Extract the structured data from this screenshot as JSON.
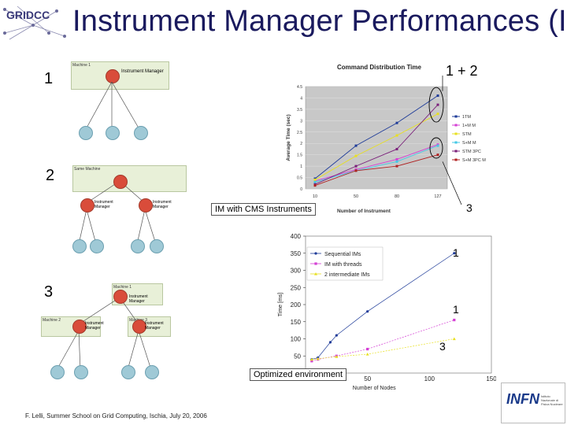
{
  "title": "Instrument Manager Performances (II)",
  "logo_text": "GRIDCC",
  "footer": "F. Lelli, Summer School on Grid Computing, Ischia, July 20, 2006",
  "infn_logo": "INFN",
  "infn_sub": "Istituto Nazionale di Fisica Nucleare",
  "labels": {
    "n1_top": "1",
    "n2": "2",
    "n3_left": "3",
    "chart1_note": "1 + 2",
    "chart1_note3": "3",
    "chart2_note1a": "1",
    "chart2_note1b": "1",
    "chart2_note3": "3"
  },
  "captions": {
    "cms": "IM with CMS Instruments",
    "optimized": "Optimized environment"
  },
  "diagrams": {
    "d1_machine": "Machine 1",
    "d1_im": "Instrument Manager",
    "d2_same": "Same Machine",
    "d2_im1": "Instrument Manager",
    "d2_im2": "Instrument Manager",
    "d3_machine1": "Machine 1",
    "d3_machine2": "Machine 2",
    "d3_machine3": "Machine 3",
    "d3_im1": "Instrument Manager",
    "d3_im2": "Instrument Manager",
    "d3_im3": "Instrument Manager"
  },
  "chart_data": [
    {
      "type": "line",
      "title": "Command Distribution Time",
      "xlabel": "Number of Instrument",
      "ylabel": "Average Time (sec)",
      "categories": [
        "10",
        "50",
        "80",
        "127"
      ],
      "ylim": [
        0,
        4.5
      ],
      "yticks": [
        "0",
        "0.5",
        "1",
        "1.5",
        "2",
        "2.5",
        "3",
        "3.5",
        "4",
        "4.5"
      ],
      "legend_position": "right",
      "series": [
        {
          "name": "1TM",
          "color": "#1f3c99",
          "values": [
            0.45,
            1.9,
            2.9,
            4.1
          ]
        },
        {
          "name": "1+M M",
          "color": "#d43fd4",
          "values": [
            0.35,
            0.85,
            1.3,
            1.95
          ]
        },
        {
          "name": "STM",
          "color": "#e8e020",
          "values": [
            0.4,
            1.45,
            2.35,
            3.3
          ]
        },
        {
          "name": "S+M M",
          "color": "#44c8e6",
          "values": [
            0.3,
            0.8,
            1.2,
            1.9
          ]
        },
        {
          "name": "STM 3PC",
          "color": "#7a1f7a",
          "values": [
            0.2,
            1.0,
            1.75,
            3.7
          ]
        },
        {
          "name": "S+M 3PC M",
          "color": "#b02020",
          "values": [
            0.15,
            0.8,
            1.0,
            1.5
          ]
        }
      ]
    },
    {
      "type": "line",
      "title": "",
      "xlabel": "Number of Nodes",
      "ylabel": "Time [ms]",
      "xlim": [
        0,
        150
      ],
      "ylim": [
        0,
        400
      ],
      "xticks": [
        "0",
        "50",
        "100",
        "150"
      ],
      "yticks": [
        "0",
        "50",
        "100",
        "150",
        "200",
        "250",
        "300",
        "350",
        "400"
      ],
      "legend_position": "top-left",
      "series": [
        {
          "name": "Sequential IMs",
          "color": "#1f3c99",
          "x": [
            5,
            10,
            20,
            25,
            50,
            120
          ],
          "y": [
            40,
            45,
            90,
            110,
            180,
            350
          ]
        },
        {
          "name": "IM with threads",
          "color": "#d43fd4",
          "x": [
            5,
            10,
            25,
            50,
            120
          ],
          "y": [
            35,
            40,
            50,
            70,
            155
          ]
        },
        {
          "name": "2 intermediate IMs",
          "color": "#e8e020",
          "x": [
            5,
            10,
            25,
            50,
            120
          ],
          "y": [
            40,
            42,
            48,
            55,
            100
          ]
        }
      ]
    }
  ]
}
